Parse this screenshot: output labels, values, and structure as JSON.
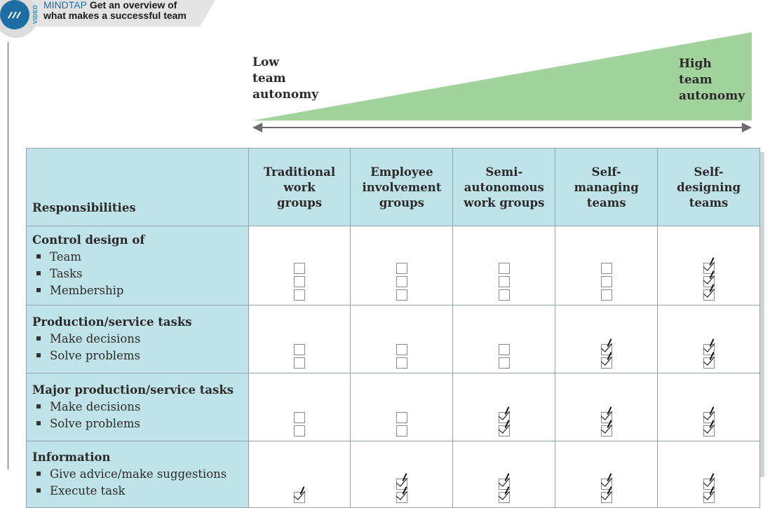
{
  "badge": {
    "tag": "VIDEO",
    "brand": "MINDTAP",
    "line1": "Get an overview of",
    "line2": "what makes a successful team",
    "icon": "chevrons-icon"
  },
  "scale": {
    "low_lines": [
      "Low",
      "team",
      "autonomy"
    ],
    "high_lines": [
      "High",
      "team",
      "autonomy"
    ],
    "wedge_color": "#a3d39c"
  },
  "table": {
    "header_resp": "Responsibilities",
    "columns": [
      [
        "Traditional",
        "work",
        "groups"
      ],
      [
        "Employee",
        "involvement",
        "groups"
      ],
      [
        "Semi-",
        "autonomous",
        "work groups"
      ],
      [
        "Self-",
        "managing",
        "teams"
      ],
      [
        "Self-",
        "designing",
        "teams"
      ]
    ],
    "header_color": "#bfe3e8",
    "rows": [
      {
        "title": "Control design of",
        "items": [
          "Team",
          "Tasks",
          "Membership"
        ],
        "checks": [
          [
            false,
            false,
            false
          ],
          [
            false,
            false,
            false
          ],
          [
            false,
            false,
            false
          ],
          [
            false,
            false,
            false
          ],
          [
            true,
            true,
            true
          ]
        ]
      },
      {
        "title": "Production/service tasks",
        "items": [
          "Make decisions",
          "Solve problems"
        ],
        "checks": [
          [
            false,
            false
          ],
          [
            false,
            false
          ],
          [
            false,
            false
          ],
          [
            true,
            true
          ],
          [
            true,
            true
          ]
        ]
      },
      {
        "title": "Major production/service tasks",
        "items": [
          "Make decisions",
          "Solve problems"
        ],
        "checks": [
          [
            false,
            false
          ],
          [
            false,
            false
          ],
          [
            true,
            true
          ],
          [
            true,
            true
          ],
          [
            true,
            true
          ]
        ]
      },
      {
        "title": "Information",
        "items": [
          "Give advice/make suggestions",
          "Execute task"
        ],
        "checks": [
          [
            null,
            true
          ],
          [
            true,
            true
          ],
          [
            true,
            true
          ],
          [
            true,
            true
          ],
          [
            true,
            true
          ]
        ]
      }
    ]
  }
}
